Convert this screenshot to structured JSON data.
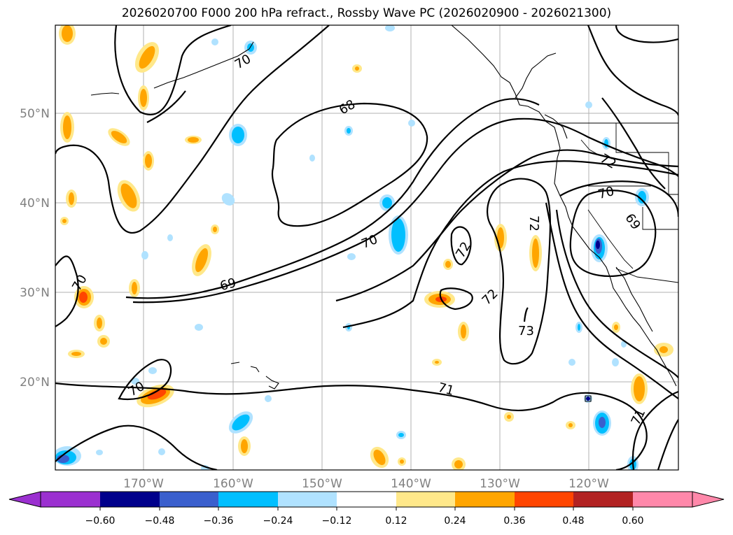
{
  "title": "2026020700 F000 200 hPa refract., Rossby Wave PC (2026020900 - 2026021300)",
  "lat_labels": [
    "50°N",
    "40°N",
    "30°N",
    "20°N"
  ],
  "lon_labels": [
    "170°W",
    "160°W",
    "150°W",
    "140°W",
    "130°W",
    "120°W"
  ],
  "colorbar": {
    "ticks": [
      "−0.60",
      "−0.48",
      "−0.36",
      "−0.24",
      "−0.12",
      "0.12",
      "0.24",
      "0.36",
      "0.48",
      "0.60"
    ],
    "colors": [
      "#9b30d0",
      "#00008b",
      "#3a5fcd",
      "#00bfff",
      "#b0e2ff",
      "#ffffff",
      "#ffe88a",
      "#ffa500",
      "#ff4500",
      "#b22222",
      "#ff88aa"
    ]
  },
  "contour_labels": [
    "70",
    "68",
    "70",
    "69",
    "72",
    "72",
    "73",
    "71",
    "70",
    "69",
    "72",
    "70",
    "70",
    "72",
    "71"
  ]
}
